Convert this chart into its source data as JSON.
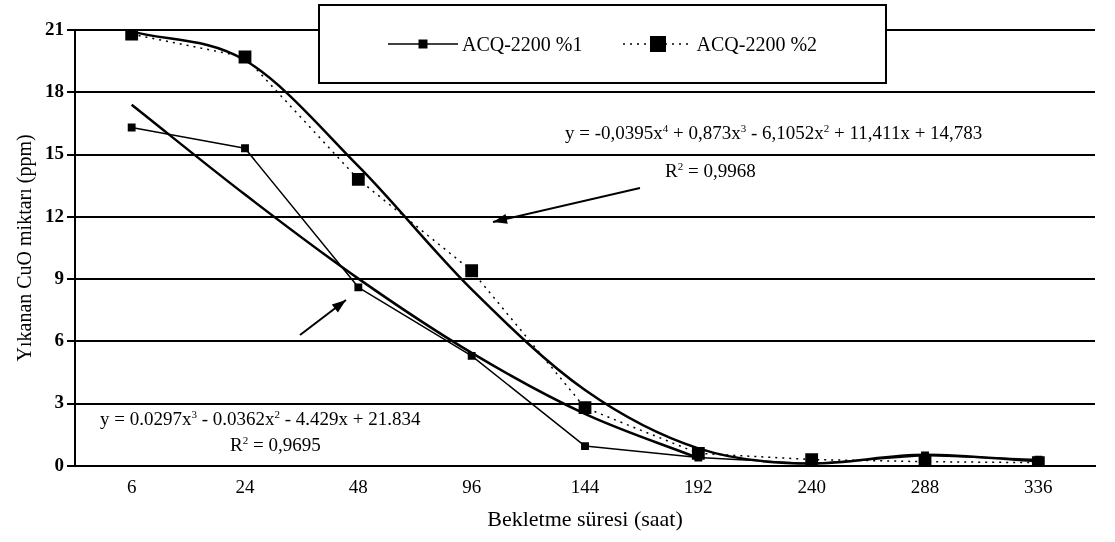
{
  "chart_data": {
    "type": "line",
    "xlabel": "Bekletme süresi (saat)",
    "ylabel": "Yıkanan CuO miktarı (ppm)",
    "categories": [
      "6",
      "24",
      "48",
      "96",
      "144",
      "192",
      "240",
      "288",
      "336"
    ],
    "ylim": [
      0,
      21
    ],
    "yticks": [
      0,
      3,
      6,
      9,
      12,
      15,
      18,
      21
    ],
    "grid": "y",
    "legend": "top",
    "marker": "square",
    "series": [
      {
        "name": "ACQ-2200 %1",
        "color": "#000000",
        "line_style": "solid",
        "values": [
          16.3,
          15.3,
          8.6,
          5.3,
          0.95,
          0.4,
          0.1,
          0.5,
          0.3
        ]
      },
      {
        "name": "ACQ-2200 %2",
        "color": "#000000",
        "line_style": "dotted",
        "values": [
          20.8,
          19.7,
          13.8,
          9.4,
          2.8,
          0.6,
          0.3,
          0.2,
          0.15
        ]
      },
      {
        "type": "line",
        "marker": "none",
        "color": "#000000",
        "line_style": "solid",
        "values": [
          17.4,
          13.07,
          9.02,
          5.44,
          2.5,
          0.37,
          null,
          null,
          null
        ]
      },
      {
        "type": "line",
        "marker": "none",
        "color": "#000000",
        "line_style": "solid",
        "values": [
          20.92,
          19.54,
          14.44,
          8.5,
          3.65,
          0.84,
          0.11,
          0.53,
          0.22
        ]
      }
    ],
    "annotations": [
      "y = 0.0297x$^{3}$ - 0.0362x$^{2}$ - 4.429x + 21.834",
      "R$^{2}$ = 0,9695",
      "y = -0,0395x$^{4}$ + 0,873x$^{3}$ - 6,1052x$^{2}$ + 11,411x + 14,783",
      "R$^{2}$ = 0,9968"
    ]
  }
}
